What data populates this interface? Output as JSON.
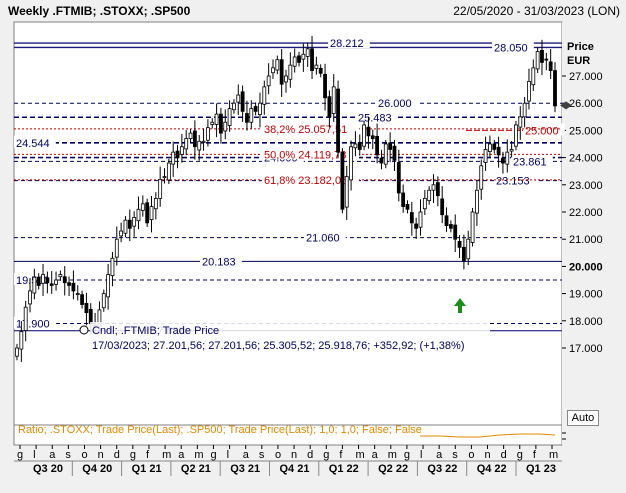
{
  "header": {
    "title": "Weekly .FTMIB; .STOXX; .SP500",
    "date_range": "22/05/2020 - 31/03/2023 (LON)"
  },
  "axis": {
    "price_label": "Price",
    "currency_label": "EUR",
    "y_ticks": [
      "27.000",
      "26.000",
      "25.000",
      "24.000",
      "23.000",
      "22.000",
      "21.000",
      "20.000",
      "19.000",
      "18.000",
      "17.000"
    ],
    "auto_button": "Auto"
  },
  "x_axis": {
    "months": [
      "g",
      "l",
      "a",
      "s",
      "o",
      "n",
      "d",
      "g",
      "f",
      "m",
      "a",
      "m",
      "g",
      "l",
      "a",
      "s",
      "o",
      "n",
      "d",
      "g",
      "f",
      "m",
      "a",
      "m",
      "g",
      "l",
      "a",
      "s",
      "o",
      "n",
      "d",
      "g",
      "f",
      "m"
    ],
    "quarters": [
      "Q3 20",
      "Q4 20",
      "Q1 21",
      "Q2 21",
      "Q3 21",
      "Q4 21",
      "Q1 22",
      "Q2 22",
      "Q3 22",
      "Q4 22",
      "Q1 23"
    ]
  },
  "levels": [
    {
      "label": "28.212",
      "value": 28212,
      "style": "solid",
      "color": "#1a1a7a"
    },
    {
      "label": "28.050",
      "value": 28050,
      "style": "solid",
      "color": "#1a1a7a"
    },
    {
      "label": "26.000",
      "value": 26000,
      "style": "dash",
      "color": "#000060"
    },
    {
      "label": "25.483",
      "value": 25483,
      "style": "dash-bold",
      "color": "#000060"
    },
    {
      "label": "25.000",
      "value": 25000,
      "style": "red",
      "color": "#c00000"
    },
    {
      "label": "24.544",
      "value": 24544,
      "style": "dash-bold",
      "color": "#000060"
    },
    {
      "label": "24.000",
      "value": 24000,
      "style": "dash-bold",
      "color": "#000060"
    },
    {
      "label": "23.861",
      "value": 23861,
      "style": "dash",
      "color": "#000060"
    },
    {
      "label": "23.153",
      "value": 23153,
      "style": "dash",
      "color": "#000060"
    },
    {
      "label": "21.060",
      "value": 21060,
      "style": "dash",
      "color": "#000060"
    },
    {
      "label": "20.183",
      "value": 20183,
      "style": "solid",
      "color": "#000060"
    },
    {
      "label": "19.500",
      "value": 19500,
      "style": "dash",
      "color": "#000060"
    },
    {
      "label": "17.900",
      "value": 17900,
      "style": "dash",
      "color": "#000060"
    },
    {
      "label": "17.636",
      "value": 17636,
      "style": "solid",
      "color": "#000060"
    }
  ],
  "fib_levels": [
    {
      "label": "38,2% 25.057,51",
      "value": 25057.51
    },
    {
      "label": "50,0% 24.119,78",
      "value": 24119.78
    },
    {
      "label": "61,8% 23.182,05",
      "value": 23182.05
    }
  ],
  "cursor_info": {
    "line1": "Cndl; .FTMIB; Trade Price",
    "line2": "17/03/2023; 27.201,56; 27.201,56; 25.305,52; 25.918,76; +352,92; (+1,38%)"
  },
  "ratio_text": "Ratio; .STOXX; Trade Price(Last); .SP500; Trade Price(Last);  1,0; 1,0; False; False",
  "chart_data": {
    "type": "candlestick",
    "title": "Weekly .FTMIB; .STOXX; .SP500",
    "ylabel": "Price EUR",
    "ylim": [
      16500,
      28800
    ],
    "grid": false,
    "last_value": 25918.76,
    "close_series": [
      17000,
      17600,
      18500,
      19100,
      19600,
      19300,
      19700,
      19400,
      19300,
      19500,
      19700,
      19400,
      19300,
      19100,
      19000,
      18600,
      18300,
      17900,
      17800,
      18400,
      19000,
      19700,
      20300,
      21000,
      21300,
      21700,
      21400,
      21800,
      22100,
      22300,
      21600,
      22200,
      22500,
      23200,
      23300,
      23800,
      24200,
      24000,
      24400,
      24700,
      24900,
      24400,
      24600,
      24600,
      25100,
      25300,
      25600,
      24900,
      25300,
      25800,
      26000,
      26300,
      25700,
      25300,
      25800,
      25700,
      26000,
      26600,
      27000,
      27300,
      27600,
      26700,
      27000,
      27400,
      27700,
      27500,
      27800,
      28000,
      27200,
      27400,
      27100,
      26200,
      25500,
      26600,
      24200,
      22100,
      23300,
      24400,
      24500,
      24300,
      25200,
      24800,
      24700,
      24100,
      23800,
      24500,
      24300,
      23900,
      22700,
      22200,
      22100,
      21600,
      21400,
      22000,
      22500,
      22800,
      23000,
      22600,
      21900,
      21500,
      21400,
      21000,
      20700,
      20200,
      21000,
      22000,
      22800,
      23700,
      24300,
      24500,
      24300,
      24100,
      23800,
      24200,
      24300,
      25200,
      25500,
      26000,
      26800,
      27300,
      27900,
      27500,
      27600,
      27200,
      25900
    ]
  }
}
